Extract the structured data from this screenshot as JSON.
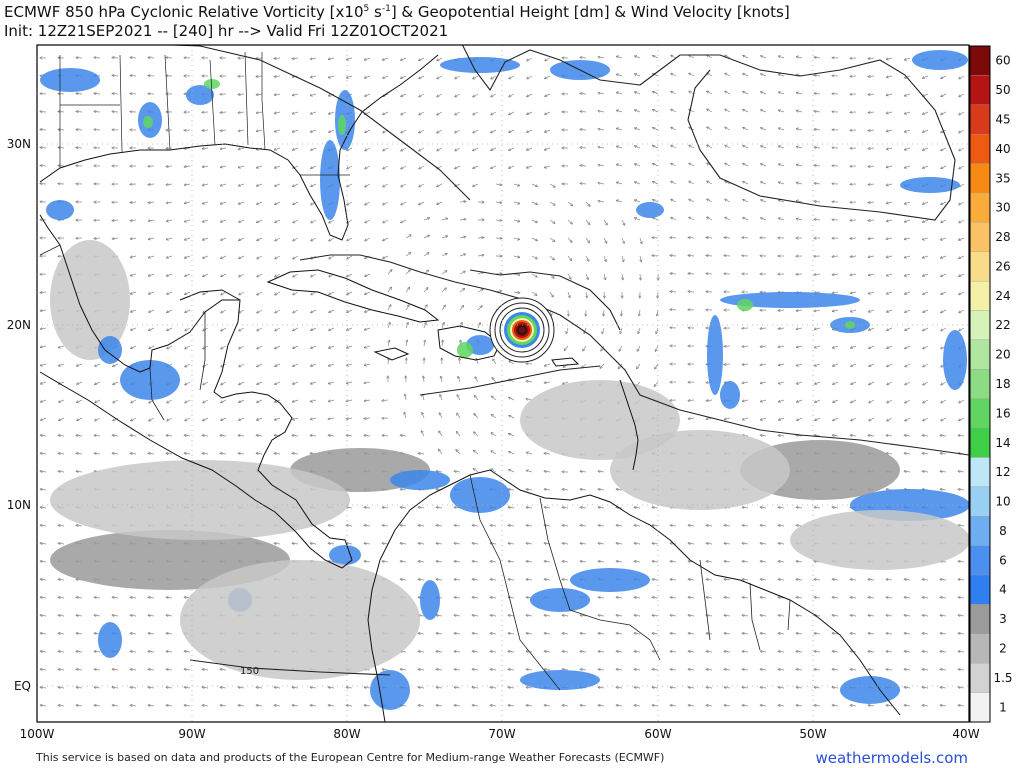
{
  "header": {
    "title_line1_prefix": "ECMWF 850 hPa Cyclonic Relative Vorticity [x10",
    "title_line1_sup": "5",
    "title_line1_mid": " s",
    "title_line1_sup2": "-1",
    "title_line1_suffix": "] & Geopotential Height [dm] & Wind Velocity [knots]",
    "title_line2": "Init: 12Z21SEP2021 -- [240] hr --> Valid Fri 12Z01OCT2021"
  },
  "map": {
    "lon_labels": [
      "100W",
      "90W",
      "80W",
      "70W",
      "60W",
      "50W",
      "40W"
    ],
    "lat_labels": [
      "30N",
      "20N",
      "10N",
      "EQ"
    ],
    "contour_label": "150",
    "colors": {
      "land": "#ffffff",
      "sea": "#ffffff",
      "coast": "#111111",
      "vort_light": "#c8c8c8",
      "vort_mid": "#9a9a9a",
      "vort_blue": "#3d86ea",
      "vort_green": "#5fd65f",
      "storm_center": "#6b1010"
    }
  },
  "colorbar": {
    "labels": [
      "60",
      "50",
      "45",
      "40",
      "35",
      "30",
      "28",
      "26",
      "24",
      "22",
      "20",
      "18",
      "16",
      "14",
      "12",
      "10",
      "8",
      "6",
      "4",
      "3",
      "2",
      "1.5",
      "1"
    ],
    "colors": [
      "#7d0a0a",
      "#b41414",
      "#d93a1c",
      "#ee5a12",
      "#f78a14",
      "#f9ac3a",
      "#fac264",
      "#f9dc8a",
      "#f3f0a8",
      "#d6f2b8",
      "#b0e6a0",
      "#8cdc84",
      "#62d462",
      "#3fce47",
      "#bde6f6",
      "#9ad0f3",
      "#6eaef0",
      "#4b8ff0",
      "#2f7ff0",
      "#9b9b9b",
      "#b7b7b7",
      "#d2d2d2",
      "#f2f2f2"
    ]
  },
  "footer": {
    "credit": "This service is based on data and products of the European Centre for Medium-range Weather Forecasts (ECMWF)",
    "brand": "weathermodels.com"
  }
}
